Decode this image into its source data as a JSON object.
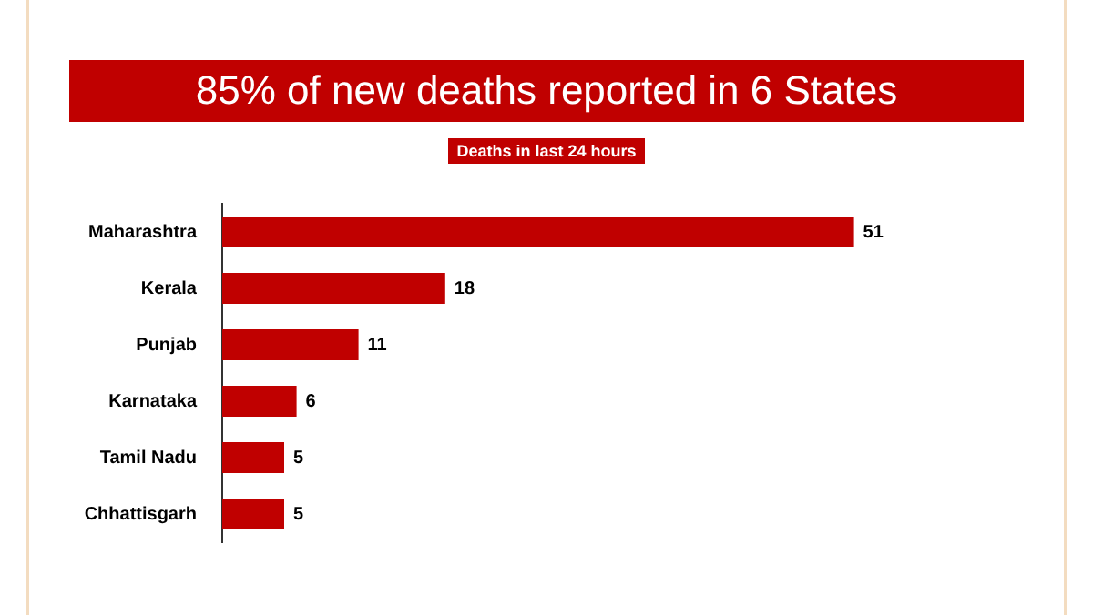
{
  "chart_data": {
    "type": "bar",
    "title": "85% of new deaths reported in 6 States",
    "subtitle": "Deaths in last 24 hours",
    "orientation": "horizontal",
    "categories": [
      "Maharashtra",
      "Kerala",
      "Punjab",
      "Karnataka",
      "Tamil Nadu",
      "Chhattisgarh"
    ],
    "values": [
      51,
      18,
      11,
      6,
      5,
      5
    ],
    "color": "#c00000",
    "data_labels": true
  }
}
